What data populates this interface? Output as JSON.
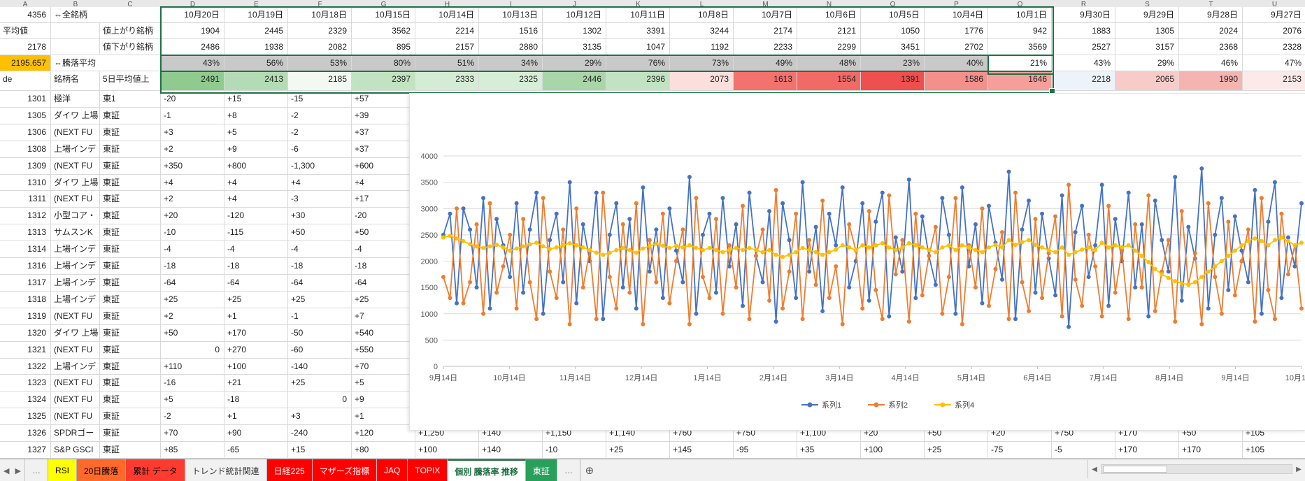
{
  "ui": {
    "arrows": {
      "left": "◀",
      "right": "▶"
    },
    "ellipsis": "…",
    "add_sheet": "⊕"
  },
  "columns": {
    "letters": [
      "A",
      "B",
      "C",
      "D",
      "E",
      "F",
      "G",
      "H",
      "I",
      "J",
      "K",
      "L",
      "M",
      "N",
      "O",
      "P",
      "Q",
      "R",
      "S",
      "T",
      "U"
    ]
  },
  "header": {
    "dates": [
      "10月20日",
      "10月19日",
      "10月18日",
      "10月15日",
      "10月14日",
      "10月13日",
      "10月12日",
      "10月11日",
      "10月8日",
      "10月7日",
      "10月6日",
      "10月5日",
      "10月4日",
      "10月1日",
      "9月30日",
      "9月29日",
      "9月28日",
      "9月27日"
    ],
    "row1": {
      "a": "4356",
      "b": "⇔全銘柄"
    },
    "row2": {
      "a": "平均値",
      "c": "値上がり銘柄",
      "values": [
        "1904",
        "2445",
        "2329",
        "3562",
        "2214",
        "1516",
        "1302",
        "3391",
        "3244",
        "2174",
        "2121",
        "1050",
        "1776",
        "942",
        "1883",
        "1305",
        "2024",
        "2076"
      ]
    },
    "row3": {
      "a": "2178",
      "c": "値下がり銘柄",
      "values": [
        "2486",
        "1938",
        "2082",
        "895",
        "2157",
        "2880",
        "3135",
        "1047",
        "1192",
        "2233",
        "2299",
        "3451",
        "2702",
        "3569",
        "2527",
        "3157",
        "2368",
        "2328"
      ]
    },
    "row4": {
      "a": "2195.657",
      "b": "⇔騰落平均",
      "a_bg": "#ffc000",
      "sel_bg": "#c9c9c9",
      "values": [
        "43%",
        "56%",
        "53%",
        "80%",
        "51%",
        "34%",
        "29%",
        "76%",
        "73%",
        "49%",
        "48%",
        "23%",
        "40%",
        "21%",
        "43%",
        "29%",
        "46%",
        "47%"
      ]
    },
    "row5": {
      "a": "de",
      "b": "銘柄名",
      "c": "5日平均値上",
      "values": [
        "2491",
        "2413",
        "2185",
        "2397",
        "2333",
        "2325",
        "2446",
        "2396",
        "2073",
        "1613",
        "1554",
        "1391",
        "1586",
        "1646",
        "2218",
        "2065",
        "1990",
        "2153"
      ],
      "colors": [
        "#8fca8f",
        "#b4dcb4",
        "#f2f9f2",
        "#c2e3c2",
        "#d4ecd4",
        "#d6edd6",
        "#a9d6a9",
        "#c2e3c2",
        "#fbdfdd",
        "#f3726e",
        "#f26a66",
        "#ee4f4f",
        "#f4908c",
        "#f59e9a",
        "#edf3fa",
        "#f8cbc8",
        "#f6b4b0",
        "#fceae9"
      ]
    },
    "selection_color": "#1e7145"
  },
  "stocks": [
    {
      "code": "1301",
      "name": "極洋",
      "market": "東1",
      "v": [
        "-20",
        "+15",
        "-15",
        "+57"
      ]
    },
    {
      "code": "1305",
      "name": "ダイワ 上場",
      "market": "東証",
      "v": [
        "-1",
        "+8",
        "-2",
        "+39"
      ]
    },
    {
      "code": "1306",
      "name": "(NEXT FU",
      "market": "東証",
      "v": [
        "+3",
        "+5",
        "-2",
        "+37"
      ]
    },
    {
      "code": "1308",
      "name": "上場インデ",
      "market": "東証",
      "v": [
        "+2",
        "+9",
        "-6",
        "+37"
      ]
    },
    {
      "code": "1309",
      "name": "(NEXT FU",
      "market": "東証",
      "v": [
        "+350",
        "+800",
        "-1,300",
        "+600"
      ]
    },
    {
      "code": "1310",
      "name": "ダイワ 上場",
      "market": "東証",
      "v": [
        "+4",
        "+4",
        "+4",
        "+4"
      ]
    },
    {
      "code": "1311",
      "name": "(NEXT FU",
      "market": "東証",
      "v": [
        "+2",
        "+4",
        "-3",
        "+17"
      ]
    },
    {
      "code": "1312",
      "name": "小型コア・",
      "market": "東証",
      "v": [
        "+20",
        "-120",
        "+30",
        "-20"
      ]
    },
    {
      "code": "1313",
      "name": "サムスンK",
      "market": "東証",
      "v": [
        "-10",
        "-115",
        "+50",
        "+50"
      ]
    },
    {
      "code": "1314",
      "name": "上場インデ",
      "market": "東証",
      "v": [
        "-4",
        "-4",
        "-4",
        "-4"
      ]
    },
    {
      "code": "1316",
      "name": "上場インデ",
      "market": "東証",
      "v": [
        "-18",
        "-18",
        "-18",
        "-18"
      ]
    },
    {
      "code": "1317",
      "name": "上場インデ",
      "market": "東証",
      "v": [
        "-64",
        "-64",
        "-64",
        "-64"
      ]
    },
    {
      "code": "1318",
      "name": "上場インデ",
      "market": "東証",
      "v": [
        "+25",
        "+25",
        "+25",
        "+25"
      ]
    },
    {
      "code": "1319",
      "name": "(NEXT FU",
      "market": "東証",
      "v": [
        "+2",
        "+1",
        "-1",
        "+7"
      ]
    },
    {
      "code": "1320",
      "name": "ダイワ 上場",
      "market": "東証",
      "v": [
        "+50",
        "+170",
        "-50",
        "+540"
      ]
    },
    {
      "code": "1321",
      "name": "(NEXT FU",
      "market": "東証",
      "v": [
        "0",
        "+270",
        "-60",
        "+550"
      ]
    },
    {
      "code": "1322",
      "name": "上場インデ",
      "market": "東証",
      "v": [
        "+110",
        "+100",
        "-140",
        "+70"
      ]
    },
    {
      "code": "1323",
      "name": "(NEXT FU",
      "market": "東証",
      "v": [
        "-16",
        "+21",
        "+25",
        "+5"
      ]
    },
    {
      "code": "1324",
      "name": "(NEXT FU",
      "market": "東証",
      "v": [
        "+5",
        "-18",
        "0",
        "+9"
      ]
    },
    {
      "code": "1325",
      "name": "(NEXT FU",
      "market": "東証",
      "v": [
        "-2",
        "+1",
        "+3",
        "+1"
      ]
    },
    {
      "code": "1326",
      "name": "SPDRゴー",
      "market": "東証",
      "v": [
        "+70",
        "+90",
        "-240",
        "+120"
      ],
      "ext": [
        "+1,250",
        "+140",
        "+1,150",
        "+1,140",
        "+760",
        "+750",
        "+1,100",
        "+20",
        "+50",
        "+20",
        "+750",
        "+170",
        "+50",
        "+105"
      ]
    },
    {
      "code": "1327",
      "name": "S&P GSCI",
      "market": "東証",
      "v": [
        "+85",
        "-65",
        "+15",
        "+80"
      ],
      "ext": [
        "+100",
        "+140",
        "-10",
        "+25",
        "+145",
        "-95",
        "+35",
        "+100",
        "+25",
        "-75",
        "-5",
        "+170",
        "+170",
        "+105"
      ]
    }
  ],
  "chart_data": {
    "type": "line",
    "title": "",
    "xlabel": "",
    "ylabel": "",
    "ylim": [
      0,
      4000
    ],
    "y_step": 500,
    "grid": true,
    "legend_position": "bottom",
    "x_labels": [
      "9月14日",
      "10月14日",
      "11月14日",
      "12月14日",
      "1月14日",
      "2月14日",
      "3月14日",
      "4月14日",
      "5月14日",
      "6月14日",
      "7月14日",
      "8月14日",
      "9月14日",
      "10月14日"
    ],
    "series": [
      {
        "name": "系列1",
        "color": "#4472C4",
        "values": [
          2500,
          2900,
          1200,
          3000,
          2600,
          1500,
          3200,
          1100,
          2800,
          2300,
          1700,
          3100,
          1400,
          2600,
          3300,
          1000,
          2400,
          2900,
          1600,
          3500,
          1200,
          2700,
          2000,
          3300,
          900,
          2500,
          3100,
          1500,
          2800,
          1100,
          3400,
          1800,
          2600,
          1300,
          3000,
          2200,
          1600,
          3600,
          1000,
          2500,
          2900,
          1400,
          3200,
          1900,
          2700,
          1150,
          3300,
          2100,
          1600,
          2950,
          850,
          3100,
          2400,
          1300,
          3500,
          1800,
          2650,
          1050,
          2900,
          2300,
          3400,
          1500,
          2000,
          3100,
          1250,
          2750,
          3300,
          950,
          2450,
          1800,
          3550,
          1300,
          2850,
          2100,
          1550,
          3200,
          2500,
          1000,
          3400,
          1900,
          2700,
          1200,
          3050,
          2350,
          1650,
          3700,
          900,
          2600,
          3150,
          1400,
          2900,
          2050,
          1350,
          3250,
          750,
          2550,
          3050,
          1700,
          2300,
          3450,
          1150,
          2800,
          2000,
          3300,
          1500,
          2700,
          950,
          3150,
          2400,
          1800,
          3600,
          1250,
          2650,
          2050,
          3760,
          1100,
          2500,
          3200,
          1450,
          2850,
          2200,
          1600,
          3350,
          1000,
          2750,
          3500,
          1300,
          2450,
          1900,
          3100
        ]
      },
      {
        "name": "系列2",
        "color": "#ED7D31",
        "values": [
          1700,
          1300,
          3000,
          1200,
          1600,
          2700,
          1000,
          3100,
          1400,
          1900,
          2500,
          1100,
          2800,
          1600,
          900,
          3200,
          1800,
          1300,
          2600,
          800,
          3000,
          1500,
          2200,
          900,
          3300,
          1700,
          1100,
          2700,
          1400,
          3100,
          800,
          2400,
          1600,
          2900,
          1200,
          2000,
          2600,
          800,
          3200,
          1700,
          1300,
          2800,
          1000,
          2300,
          1500,
          3050,
          900,
          2100,
          2600,
          1250,
          3350,
          1100,
          1800,
          2900,
          900,
          2400,
          1550,
          3150,
          1300,
          1900,
          800,
          2700,
          2200,
          1100,
          2950,
          1450,
          900,
          3250,
          1750,
          2400,
          850,
          2900,
          1350,
          2100,
          2650,
          1000,
          1700,
          3200,
          800,
          2300,
          1500,
          3000,
          1150,
          1850,
          2550,
          900,
          3300,
          1600,
          1050,
          2800,
          1300,
          2150,
          2850,
          950,
          3450,
          1650,
          1150,
          2500,
          1900,
          950,
          3050,
          1400,
          2200,
          900,
          2700,
          1500,
          3250,
          1050,
          1800,
          2400,
          850,
          2950,
          1550,
          2150,
          800,
          3100,
          1700,
          1000,
          2750,
          1350,
          2000,
          2600,
          850,
          3200,
          1450,
          900,
          2900,
          1750,
          2300,
          1100
        ]
      },
      {
        "name": "系列4",
        "color": "#FFC000",
        "values": [
          2450,
          2480,
          2430,
          2380,
          2320,
          2280,
          2250,
          2280,
          2310,
          2260,
          2200,
          2240,
          2280,
          2320,
          2350,
          2280,
          2230,
          2260,
          2300,
          2340,
          2300,
          2260,
          2210,
          2160,
          2120,
          2160,
          2210,
          2250,
          2210,
          2160,
          2240,
          2290,
          2330,
          2290,
          2250,
          2290,
          2260,
          2300,
          2250,
          2210,
          2250,
          2210,
          2170,
          2210,
          2250,
          2210,
          2250,
          2210,
          2170,
          2210,
          2120,
          2080,
          2120,
          2170,
          2250,
          2210,
          2170,
          2120,
          2170,
          2220,
          2300,
          2260,
          2210,
          2300,
          2260,
          2300,
          2340,
          2260,
          2210,
          2260,
          2340,
          2300,
          2260,
          2210,
          2170,
          2260,
          2300,
          2210,
          2300,
          2260,
          2210,
          2170,
          2260,
          2310,
          2260,
          2400,
          2310,
          2360,
          2400,
          2310,
          2260,
          2210,
          2170,
          2260,
          2120,
          2170,
          2220,
          2260,
          2210,
          2350,
          2260,
          2300,
          2260,
          2300,
          2200,
          2100,
          1980,
          1850,
          1750,
          1680,
          1620,
          1580,
          1550,
          1600,
          1700,
          1800,
          1900,
          2000,
          2100,
          2200,
          2300,
          2380,
          2430,
          2380,
          2300,
          2400,
          2450,
          2380,
          2300,
          2350
        ]
      }
    ]
  },
  "tabs": {
    "items": [
      {
        "label": "…",
        "bg": "",
        "fg": "#555",
        "slug": "more-left"
      },
      {
        "label": "RSI",
        "bg": "#ffff00",
        "fg": "#000000",
        "slug": "rsi"
      },
      {
        "label": "20日騰落",
        "bg": "#ff6a2a",
        "fg": "#000000",
        "slug": "20day"
      },
      {
        "label": "累計 データ",
        "bg": "#ff3b30",
        "fg": "#000000",
        "slug": "ruikei-data"
      },
      {
        "label": "トレンド統計関連",
        "bg": "",
        "fg": "#333333",
        "slug": "trend-stats"
      },
      {
        "label": "日経225",
        "bg": "#ff0000",
        "fg": "#ffffff",
        "slug": "nikkei225"
      },
      {
        "label": "マザーズ指標",
        "bg": "#ff0000",
        "fg": "#ffffff",
        "slug": "mothers"
      },
      {
        "label": "JAQ",
        "bg": "#ff0000",
        "fg": "#ffffff",
        "slug": "jaq"
      },
      {
        "label": "TOPIX",
        "bg": "#ff0000",
        "fg": "#ffffff",
        "slug": "topix"
      },
      {
        "label": "個別 騰落率 推移",
        "bg": "#ffffff",
        "fg": "#1d6f42",
        "active": true,
        "slug": "kobetsu-active"
      },
      {
        "label": "東証",
        "bg": "#28a05c",
        "fg": "#ffffff",
        "slug": "tosho"
      },
      {
        "label": "…",
        "bg": "",
        "fg": "#555",
        "slug": "more-right"
      }
    ]
  }
}
